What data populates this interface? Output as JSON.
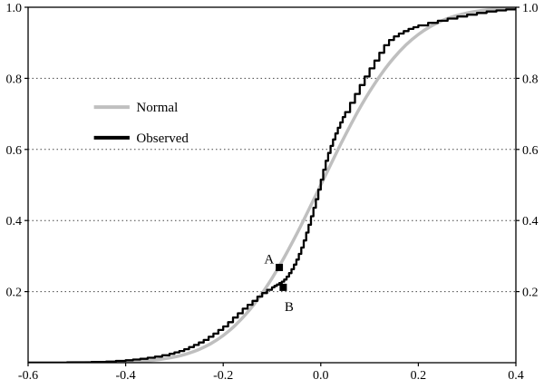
{
  "figure": {
    "background": "#ffffff",
    "border_color": "#000000",
    "grid_color": "#444444"
  },
  "chart_data": {
    "type": "line",
    "title": "",
    "xlabel": "",
    "ylabel": "",
    "xlim": [
      -0.6,
      0.4
    ],
    "ylim": [
      0.0,
      1.0
    ],
    "x_ticks": [
      -0.6,
      -0.4,
      -0.2,
      0.0,
      0.2,
      0.4
    ],
    "x_tick_labels": [
      "-0.6",
      "-0.4",
      "-0.2",
      "0.0",
      "0.2",
      "0.4"
    ],
    "y_ticks": [
      0.2,
      0.4,
      0.6,
      0.8,
      1.0
    ],
    "y_tick_labels": [
      "0.2",
      "0.4",
      "0.6",
      "0.8",
      "1.0"
    ],
    "y_axis_sides": [
      "left",
      "right"
    ],
    "grid": "horizontal-dotted",
    "grid_lines": [
      0.2,
      0.4,
      0.6,
      0.8
    ],
    "legend": {
      "position": "upper-left-inside",
      "entries": [
        {
          "label": "Normal",
          "color": "#bfbfbf",
          "line_width": 4
        },
        {
          "label": "Observed",
          "color": "#000000",
          "line_width": 4
        }
      ]
    },
    "series": [
      {
        "name": "Normal",
        "color": "#bfbfbf",
        "width": 3.5,
        "style": "smooth",
        "points": [
          [
            -0.6,
            0.0
          ],
          [
            -0.575,
            0.0
          ],
          [
            -0.55,
            0.0
          ],
          [
            -0.525,
            0.0001
          ],
          [
            -0.5,
            0.0002
          ],
          [
            -0.475,
            0.0004
          ],
          [
            -0.45,
            0.0007
          ],
          [
            -0.425,
            0.0012
          ],
          [
            -0.4,
            0.0021
          ],
          [
            -0.375,
            0.0037
          ],
          [
            -0.35,
            0.0062
          ],
          [
            -0.325,
            0.0101
          ],
          [
            -0.3,
            0.0161
          ],
          [
            -0.275,
            0.0248
          ],
          [
            -0.25,
            0.0371
          ],
          [
            -0.225,
            0.054
          ],
          [
            -0.2,
            0.0765
          ],
          [
            -0.175,
            0.1056
          ],
          [
            -0.15,
            0.142
          ],
          [
            -0.125,
            0.186
          ],
          [
            -0.1,
            0.2376
          ],
          [
            -0.075,
            0.296
          ],
          [
            -0.05,
            0.3605
          ],
          [
            -0.025,
            0.429
          ],
          [
            0.0,
            0.5
          ],
          [
            0.025,
            0.571
          ],
          [
            0.05,
            0.6395
          ],
          [
            0.075,
            0.704
          ],
          [
            0.1,
            0.7624
          ],
          [
            0.125,
            0.814
          ],
          [
            0.15,
            0.858
          ],
          [
            0.175,
            0.8944
          ],
          [
            0.2,
            0.9235
          ],
          [
            0.225,
            0.946
          ],
          [
            0.25,
            0.9629
          ],
          [
            0.275,
            0.9752
          ],
          [
            0.3,
            0.9839
          ],
          [
            0.325,
            0.9899
          ],
          [
            0.35,
            0.9938
          ],
          [
            0.375,
            0.9963
          ],
          [
            0.4,
            0.9979
          ]
        ]
      },
      {
        "name": "Observed",
        "color": "#000000",
        "width": 2.3,
        "style": "step",
        "points": [
          [
            -0.6,
            0.0
          ],
          [
            -0.52,
            0.001
          ],
          [
            -0.47,
            0.002
          ],
          [
            -0.44,
            0.003
          ],
          [
            -0.42,
            0.005
          ],
          [
            -0.4,
            0.007
          ],
          [
            -0.385,
            0.009
          ],
          [
            -0.37,
            0.011
          ],
          [
            -0.355,
            0.014
          ],
          [
            -0.34,
            0.017
          ],
          [
            -0.325,
            0.021
          ],
          [
            -0.31,
            0.025
          ],
          [
            -0.3,
            0.029
          ],
          [
            -0.29,
            0.033
          ],
          [
            -0.28,
            0.038
          ],
          [
            -0.27,
            0.044
          ],
          [
            -0.26,
            0.05
          ],
          [
            -0.25,
            0.057
          ],
          [
            -0.24,
            0.064
          ],
          [
            -0.23,
            0.073
          ],
          [
            -0.22,
            0.082
          ],
          [
            -0.21,
            0.092
          ],
          [
            -0.2,
            0.102
          ],
          [
            -0.19,
            0.114
          ],
          [
            -0.18,
            0.127
          ],
          [
            -0.17,
            0.139
          ],
          [
            -0.16,
            0.152
          ],
          [
            -0.15,
            0.163
          ],
          [
            -0.14,
            0.174
          ],
          [
            -0.13,
            0.186
          ],
          [
            -0.12,
            0.196
          ],
          [
            -0.11,
            0.205
          ],
          [
            -0.1,
            0.212
          ],
          [
            -0.095,
            0.216
          ],
          [
            -0.09,
            0.22
          ],
          [
            -0.085,
            0.224
          ],
          [
            -0.08,
            0.228
          ],
          [
            -0.075,
            0.234
          ],
          [
            -0.07,
            0.242
          ],
          [
            -0.065,
            0.252
          ],
          [
            -0.06,
            0.263
          ],
          [
            -0.055,
            0.276
          ],
          [
            -0.05,
            0.29
          ],
          [
            -0.045,
            0.306
          ],
          [
            -0.04,
            0.324
          ],
          [
            -0.035,
            0.344
          ],
          [
            -0.03,
            0.366
          ],
          [
            -0.025,
            0.388
          ],
          [
            -0.02,
            0.412
          ],
          [
            -0.015,
            0.436
          ],
          [
            -0.01,
            0.46
          ],
          [
            -0.005,
            0.487
          ],
          [
            0.0,
            0.515
          ],
          [
            0.005,
            0.543
          ],
          [
            0.01,
            0.568
          ],
          [
            0.015,
            0.59
          ],
          [
            0.02,
            0.61
          ],
          [
            0.025,
            0.628
          ],
          [
            0.03,
            0.645
          ],
          [
            0.035,
            0.661
          ],
          [
            0.04,
            0.676
          ],
          [
            0.045,
            0.691
          ],
          [
            0.05,
            0.705
          ],
          [
            0.06,
            0.731
          ],
          [
            0.07,
            0.756
          ],
          [
            0.08,
            0.781
          ],
          [
            0.09,
            0.805
          ],
          [
            0.1,
            0.828
          ],
          [
            0.11,
            0.85
          ],
          [
            0.12,
            0.872
          ],
          [
            0.13,
            0.893
          ],
          [
            0.14,
            0.908
          ],
          [
            0.15,
            0.918
          ],
          [
            0.16,
            0.926
          ],
          [
            0.17,
            0.933
          ],
          [
            0.18,
            0.939
          ],
          [
            0.19,
            0.944
          ],
          [
            0.2,
            0.949
          ],
          [
            0.22,
            0.956
          ],
          [
            0.24,
            0.962
          ],
          [
            0.26,
            0.968
          ],
          [
            0.28,
            0.974
          ],
          [
            0.3,
            0.979
          ],
          [
            0.32,
            0.984
          ],
          [
            0.34,
            0.988
          ],
          [
            0.36,
            0.991
          ],
          [
            0.38,
            0.994
          ],
          [
            0.4,
            0.997
          ]
        ]
      }
    ],
    "annotations": [
      {
        "label": "A",
        "marker": "square",
        "x": -0.085,
        "y": 0.268,
        "label_x": -0.106,
        "label_y": 0.292
      },
      {
        "label": "B",
        "marker": "square",
        "x": -0.077,
        "y": 0.212,
        "label_x": -0.065,
        "label_y": 0.158
      }
    ]
  }
}
